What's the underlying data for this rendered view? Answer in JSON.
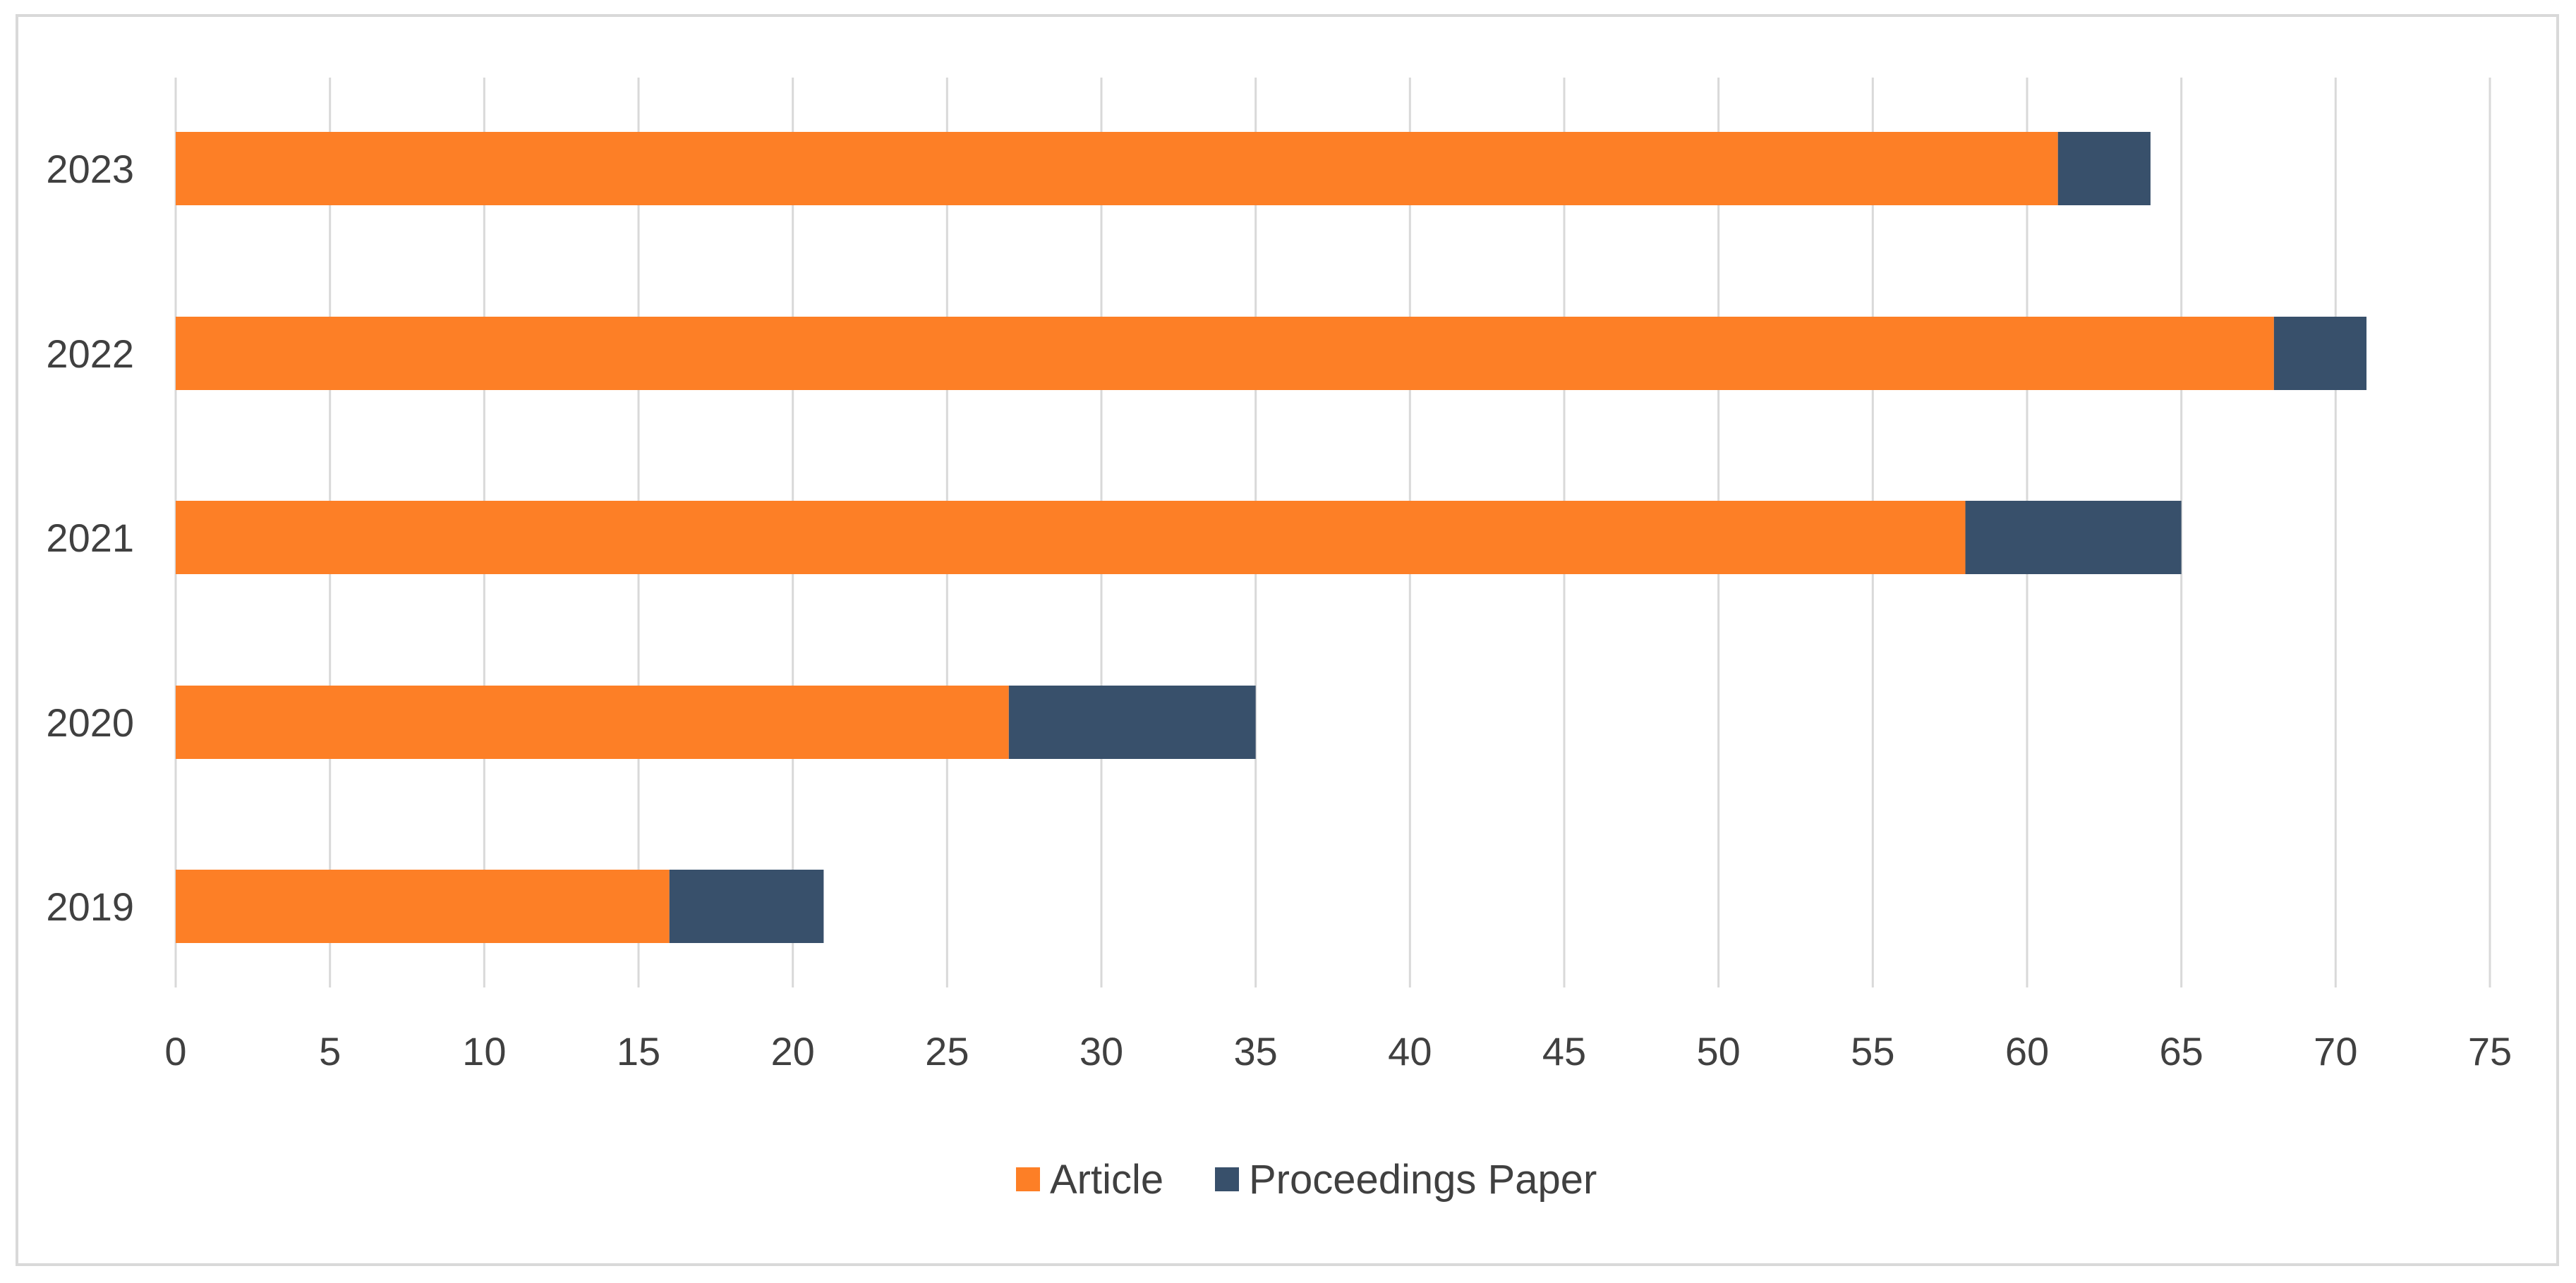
{
  "chart_data": {
    "type": "bar",
    "orientation": "horizontal",
    "stacked": true,
    "title": "",
    "xlabel": "",
    "ylabel": "",
    "categories": [
      "2023",
      "2022",
      "2021",
      "2020",
      "2019"
    ],
    "series": [
      {
        "name": "Article",
        "color": "#fd7f26",
        "values": [
          61,
          68,
          58,
          27,
          16
        ]
      },
      {
        "name": "Proceedings Paper",
        "color": "#38506b",
        "values": [
          3,
          3,
          7,
          8,
          5
        ]
      }
    ],
    "xlim": [
      0,
      75
    ],
    "xticks": [
      "0",
      "5",
      "10",
      "15",
      "20",
      "25",
      "30",
      "35",
      "40",
      "45",
      "50",
      "55",
      "60",
      "65",
      "70",
      "75"
    ],
    "grid": "vertical",
    "legend": {
      "position": "bottom"
    }
  }
}
